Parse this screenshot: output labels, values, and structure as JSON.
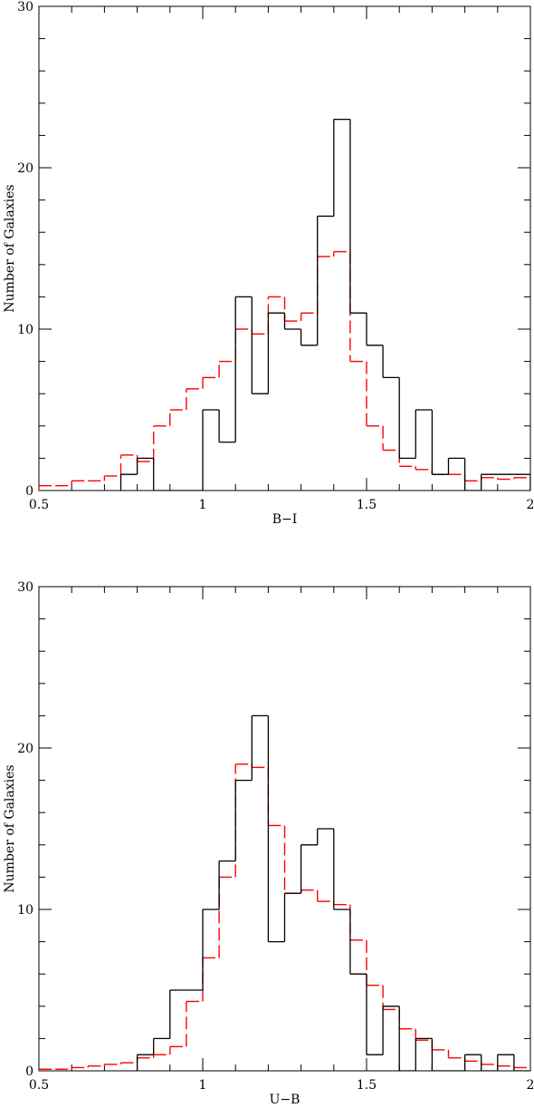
{
  "chart_data": [
    {
      "type": "histogram",
      "xlabel": "B−I",
      "ylabel": "Number of Galaxies",
      "xlim": [
        0.5,
        2
      ],
      "ylim": [
        0,
        30
      ],
      "xticks": [
        0.5,
        1,
        1.5,
        2
      ],
      "xtick_labels": [
        "0.5",
        "1",
        "1.5",
        "2"
      ],
      "yticks": [
        0,
        10,
        20,
        30
      ],
      "ytick_labels": [
        "0",
        "10",
        "20",
        "30"
      ],
      "bin_width": 0.05,
      "series": [
        {
          "style": "solid",
          "color": "#000000",
          "bin_starts": [
            0.75,
            0.8,
            0.85,
            0.9,
            0.95,
            1.0,
            1.05,
            1.1,
            1.15,
            1.2,
            1.25,
            1.3,
            1.35,
            1.4,
            1.45,
            1.5,
            1.55,
            1.6,
            1.65,
            1.7,
            1.75,
            1.8,
            1.85,
            1.9,
            1.95
          ],
          "values": [
            1,
            2,
            0,
            0,
            0,
            5,
            3,
            12,
            6,
            11,
            10,
            9,
            17,
            23,
            11,
            9,
            7,
            2,
            5,
            1,
            2,
            0,
            1,
            1,
            1
          ]
        },
        {
          "style": "dashed",
          "color": "#ff0000",
          "bin_starts": [
            0.5,
            0.55,
            0.6,
            0.65,
            0.7,
            0.75,
            0.8,
            0.85,
            0.9,
            0.95,
            1.0,
            1.05,
            1.1,
            1.15,
            1.2,
            1.25,
            1.3,
            1.35,
            1.4,
            1.45,
            1.5,
            1.55,
            1.6,
            1.65,
            1.7,
            1.75,
            1.8,
            1.85,
            1.9,
            1.95
          ],
          "values": [
            0.3,
            0.3,
            0.6,
            0.6,
            0.9,
            2.2,
            1.8,
            4.0,
            5.0,
            6.3,
            7.0,
            8.0,
            10.0,
            9.7,
            12.0,
            10.5,
            11.0,
            14.5,
            14.8,
            8.0,
            4.0,
            2.5,
            1.5,
            1.3,
            1.0,
            1.0,
            0.6,
            0.8,
            0.7,
            0.8
          ]
        }
      ]
    },
    {
      "type": "histogram",
      "xlabel": "U−B",
      "ylabel": "Number of Galaxies",
      "xlim": [
        0.5,
        2
      ],
      "ylim": [
        0,
        30
      ],
      "xticks": [
        0.5,
        1,
        1.5,
        2
      ],
      "xtick_labels": [
        "0.5",
        "1",
        "1.5",
        "2"
      ],
      "yticks": [
        0,
        10,
        20,
        30
      ],
      "ytick_labels": [
        "0",
        "10",
        "20",
        "30"
      ],
      "bin_width": 0.05,
      "series": [
        {
          "style": "solid",
          "color": "#000000",
          "bin_starts": [
            0.8,
            0.85,
            0.9,
            0.95,
            1.0,
            1.05,
            1.1,
            1.15,
            1.2,
            1.25,
            1.3,
            1.35,
            1.4,
            1.45,
            1.5,
            1.55,
            1.6,
            1.65,
            1.7,
            1.75,
            1.8,
            1.85,
            1.9,
            1.95
          ],
          "values": [
            1,
            2,
            5,
            5,
            10,
            13,
            18,
            22,
            8,
            11,
            14,
            15,
            10,
            6,
            1,
            4,
            0,
            2,
            0,
            0,
            1,
            0,
            1,
            0
          ]
        },
        {
          "style": "dashed",
          "color": "#ff0000",
          "bin_starts": [
            0.5,
            0.55,
            0.6,
            0.65,
            0.7,
            0.75,
            0.8,
            0.85,
            0.9,
            0.95,
            1.0,
            1.05,
            1.1,
            1.15,
            1.2,
            1.25,
            1.3,
            1.35,
            1.4,
            1.45,
            1.5,
            1.55,
            1.6,
            1.65,
            1.7,
            1.75,
            1.8,
            1.85,
            1.9,
            1.95
          ],
          "values": [
            0.1,
            0.1,
            0.2,
            0.3,
            0.4,
            0.5,
            0.8,
            1.0,
            1.5,
            4.3,
            7.0,
            12.0,
            19.0,
            18.8,
            15.2,
            11.0,
            11.2,
            10.5,
            10.3,
            8.1,
            5.3,
            3.8,
            2.6,
            1.9,
            1.3,
            0.8,
            0.6,
            0.4,
            0.3,
            0.2
          ]
        }
      ]
    }
  ]
}
